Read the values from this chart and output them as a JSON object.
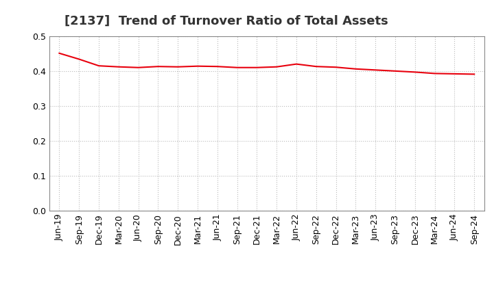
{
  "title": "[2137]  Trend of Turnover Ratio of Total Assets",
  "x_labels": [
    "Jun-19",
    "Sep-19",
    "Dec-19",
    "Mar-20",
    "Jun-20",
    "Sep-20",
    "Dec-20",
    "Mar-21",
    "Jun-21",
    "Sep-21",
    "Dec-21",
    "Mar-22",
    "Jun-22",
    "Sep-22",
    "Dec-22",
    "Mar-23",
    "Jun-23",
    "Sep-23",
    "Dec-23",
    "Mar-24",
    "Jun-24",
    "Sep-24"
  ],
  "values": [
    0.451,
    0.434,
    0.415,
    0.412,
    0.41,
    0.413,
    0.412,
    0.414,
    0.413,
    0.41,
    0.41,
    0.412,
    0.42,
    0.413,
    0.411,
    0.406,
    0.403,
    0.4,
    0.397,
    0.393,
    0.392,
    0.391
  ],
  "line_color": "#e8000d",
  "background_color": "#ffffff",
  "grid_color": "#bbbbbb",
  "ylim": [
    0.0,
    0.5
  ],
  "yticks": [
    0.0,
    0.1,
    0.2,
    0.3,
    0.4,
    0.5
  ],
  "title_fontsize": 13,
  "tick_fontsize": 9
}
